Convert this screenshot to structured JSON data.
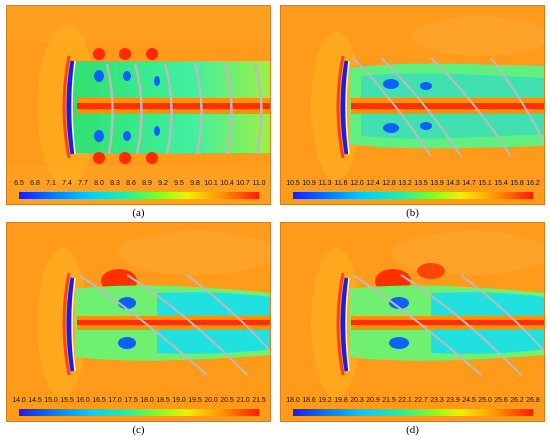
{
  "panels": [
    {
      "label": "(a)",
      "ticks": [
        "6.5",
        "6.8",
        "7.1",
        "7.4",
        "7.7",
        "8.0",
        "8.3",
        "8.6",
        "8.9",
        "9.2",
        "9.5",
        "9.8",
        "10.1",
        "10.4",
        "10.7",
        "11.0"
      ]
    },
    {
      "label": "(b)",
      "ticks": [
        "10.5",
        "10.9",
        "11.3",
        "11.6",
        "12.0",
        "12.4",
        "12.8",
        "13.2",
        "13.5",
        "13.9",
        "14.3",
        "14.7",
        "15.1",
        "15.4",
        "15.8",
        "16.2"
      ]
    },
    {
      "label": "(c)",
      "ticks": [
        "14.0",
        "14.5",
        "15.0",
        "15.5",
        "16.0",
        "16.5",
        "17.0",
        "17.5",
        "18.0",
        "18.5",
        "19.0",
        "19.5",
        "20.0",
        "20.5",
        "21.0",
        "21.5"
      ]
    },
    {
      "label": "(d)",
      "ticks": [
        "18.0",
        "18.6",
        "19.2",
        "19.8",
        "20.3",
        "20.9",
        "21.5",
        "22.1",
        "22.7",
        "23.3",
        "23.9",
        "24.5",
        "25.0",
        "25.6",
        "26.2",
        "26.8"
      ]
    }
  ],
  "colors": {
    "background": "#ff9a1a",
    "high": "#ff2a00",
    "low": "#1a1aff",
    "mid": "#40f0a0"
  }
}
